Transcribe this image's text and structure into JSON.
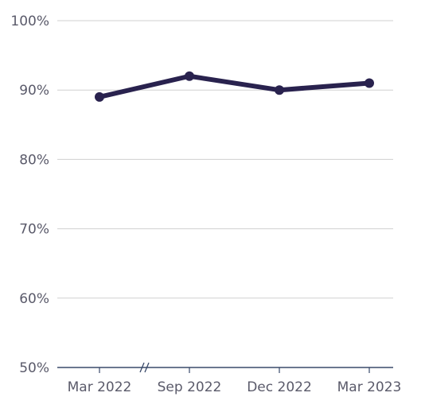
{
  "chart_data": {
    "type": "line",
    "title": "",
    "xlabel": "",
    "ylabel": "",
    "categories": [
      "Mar 2022",
      "Sep 2022",
      "Dec 2022",
      "Mar 2023"
    ],
    "series": [
      {
        "values": [
          89,
          92,
          90,
          91
        ]
      }
    ],
    "ylim": [
      50,
      100
    ],
    "yticks": [
      50,
      60,
      70,
      80,
      90,
      100
    ],
    "ytick_labels": [
      "50%",
      "60%",
      "70%",
      "80%",
      "90%",
      "100%"
    ],
    "grid": true,
    "axis_break_between": [
      "Mar 2022",
      "Sep 2022"
    ],
    "colors": {
      "line": "#29224e",
      "grid": "#d0d0d0",
      "axis": "#3a4a6a",
      "tick_text": "#5a5a6a"
    }
  }
}
